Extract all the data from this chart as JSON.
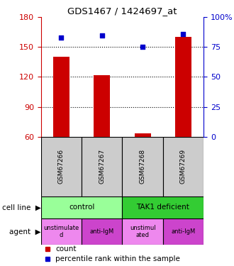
{
  "title": "GDS1467 / 1424697_at",
  "samples": [
    "GSM67266",
    "GSM67267",
    "GSM67268",
    "GSM67269"
  ],
  "counts": [
    140,
    122,
    63,
    160
  ],
  "percentiles": [
    83,
    85,
    75,
    86
  ],
  "ylim_left": [
    60,
    180
  ],
  "yticks_left": [
    60,
    90,
    120,
    150,
    180
  ],
  "ylim_right": [
    0,
    100
  ],
  "yticks_right": [
    0,
    25,
    50,
    75,
    100
  ],
  "ytick_labels_right": [
    "0",
    "25",
    "50",
    "75",
    "100%"
  ],
  "bar_color": "#cc0000",
  "scatter_color": "#0000cc",
  "cell_line_labels": [
    "control",
    "TAK1 deficient"
  ],
  "cell_line_spans": [
    [
      0,
      2
    ],
    [
      2,
      4
    ]
  ],
  "cell_line_color_light": "#99ff99",
  "cell_line_color_dark": "#33cc33",
  "agent_label_1": "unstimulate\nd",
  "agent_label_2": "anti-IgM",
  "agent_label_3": "unstimul\nated",
  "agent_label_4": "anti-IgM",
  "agent_color_light": "#ee88ee",
  "agent_color_dark": "#cc44cc",
  "legend_count_color": "#cc0000",
  "legend_pct_color": "#0000cc",
  "sample_box_color": "#cccccc",
  "left_label_color": "#cc0000",
  "right_label_color": "#0000cc",
  "grid_line_values": [
    90,
    120,
    150
  ]
}
